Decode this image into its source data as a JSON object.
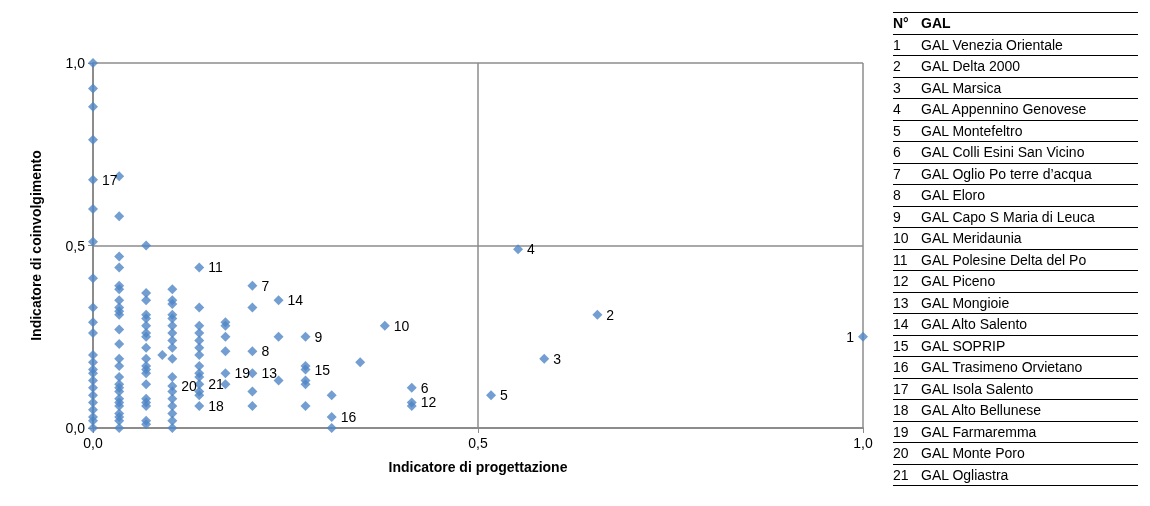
{
  "chart_data": [
    {
      "type": "scatter",
      "xlabel": "Indicatore di progettazione",
      "ylabel": "Indicatore di coinvolgimento",
      "color": "#4f86c6",
      "marker": "diamond",
      "grid": true,
      "xlim": [
        0,
        1
      ],
      "ylim": [
        0,
        1
      ],
      "xticks": [
        {
          "value": 0,
          "label": "0,0"
        },
        {
          "value": 0.5,
          "label": "0,5"
        },
        {
          "value": 1,
          "label": "1,0"
        }
      ],
      "yticks": [
        {
          "value": 0,
          "label": "0,0"
        },
        {
          "value": 0.5,
          "label": "0,5"
        },
        {
          "value": 1,
          "label": "1,0"
        }
      ],
      "x": [
        0,
        0,
        0,
        0,
        0,
        0,
        0,
        0,
        0,
        0,
        0,
        0,
        0,
        0,
        0,
        0,
        0,
        0,
        0,
        0,
        0,
        0,
        0,
        0.034,
        0.034,
        0.034,
        0.034,
        0.034,
        0.034,
        0.034,
        0.034,
        0.034,
        0.034,
        0.034,
        0.034,
        0.034,
        0.034,
        0.034,
        0.034,
        0.034,
        0.034,
        0.034,
        0.034,
        0.034,
        0.034,
        0.034,
        0.034,
        0.034,
        0.069,
        0.069,
        0.069,
        0.069,
        0.069,
        0.069,
        0.069,
        0.069,
        0.069,
        0.069,
        0.069,
        0.069,
        0.069,
        0.069,
        0.069,
        0.069,
        0.069,
        0.069,
        0.069,
        0.09,
        0.103,
        0.103,
        0.103,
        0.103,
        0.103,
        0.103,
        0.103,
        0.103,
        0.103,
        0.103,
        0.103,
        0.103,
        0.103,
        0.103,
        0.103,
        0.103,
        0.103,
        0.103,
        0.138,
        0.138,
        0.138,
        0.138,
        0.138,
        0.138,
        0.138,
        0.138,
        0.138,
        0.138,
        0.138,
        0.138,
        0.138,
        0.138,
        0.172,
        0.172,
        0.172,
        0.172,
        0.172,
        0.172,
        0.207,
        0.207,
        0.207,
        0.207,
        0.207,
        0.207,
        0.241,
        0.241,
        0.241,
        0.276,
        0.276,
        0.276,
        0.276,
        0.276,
        0.276,
        0.31,
        0.31,
        0.31,
        0.347,
        0.379,
        0.414,
        0.414,
        0.414,
        0.517,
        0.552,
        0.586,
        0.655,
        1.0
      ],
      "values": [
        1.0,
        0.93,
        0.88,
        0.79,
        0.68,
        0.6,
        0.51,
        0.41,
        0.33,
        0.29,
        0.26,
        0.2,
        0.18,
        0.16,
        0.15,
        0.13,
        0.11,
        0.09,
        0.07,
        0.05,
        0.03,
        0.02,
        0.0,
        0.69,
        0.58,
        0.47,
        0.44,
        0.39,
        0.38,
        0.35,
        0.33,
        0.32,
        0.31,
        0.27,
        0.23,
        0.19,
        0.17,
        0.14,
        0.12,
        0.11,
        0.1,
        0.08,
        0.07,
        0.06,
        0.04,
        0.03,
        0.02,
        0.0,
        0.5,
        0.37,
        0.35,
        0.31,
        0.3,
        0.28,
        0.26,
        0.25,
        0.22,
        0.19,
        0.17,
        0.16,
        0.15,
        0.12,
        0.08,
        0.07,
        0.06,
        0.02,
        0.01,
        0.2,
        0.38,
        0.35,
        0.34,
        0.31,
        0.3,
        0.28,
        0.26,
        0.24,
        0.22,
        0.19,
        0.14,
        0.115,
        0.1,
        0.08,
        0.06,
        0.04,
        0.02,
        0.0,
        0.44,
        0.33,
        0.28,
        0.26,
        0.24,
        0.22,
        0.2,
        0.17,
        0.15,
        0.14,
        0.12,
        0.1,
        0.09,
        0.06,
        0.29,
        0.28,
        0.25,
        0.21,
        0.15,
        0.12,
        0.39,
        0.33,
        0.21,
        0.15,
        0.1,
        0.06,
        0.35,
        0.25,
        0.13,
        0.25,
        0.17,
        0.16,
        0.13,
        0.12,
        0.06,
        0.09,
        0.03,
        0.0,
        0.18,
        0.28,
        0.11,
        0.07,
        0.06,
        0.09,
        0.49,
        0.19,
        0.31,
        0.25
      ],
      "annotations": [
        {
          "text": "17",
          "x": 0,
          "y": 0.68
        },
        {
          "text": "20",
          "x": 0.103,
          "y": 0.115
        },
        {
          "text": "11",
          "x": 0.138,
          "y": 0.44
        },
        {
          "text": "21",
          "x": 0.138,
          "y": 0.12
        },
        {
          "text": "18",
          "x": 0.138,
          "y": 0.06
        },
        {
          "text": "19",
          "x": 0.172,
          "y": 0.15
        },
        {
          "text": "7",
          "x": 0.207,
          "y": 0.39
        },
        {
          "text": "8",
          "x": 0.207,
          "y": 0.21
        },
        {
          "text": "13",
          "x": 0.207,
          "y": 0.15
        },
        {
          "text": "14",
          "x": 0.241,
          "y": 0.35
        },
        {
          "text": "9",
          "x": 0.276,
          "y": 0.25
        },
        {
          "text": "15",
          "x": 0.276,
          "y": 0.16
        },
        {
          "text": "16",
          "x": 0.31,
          "y": 0.03
        },
        {
          "text": "10",
          "x": 0.379,
          "y": 0.28
        },
        {
          "text": "6",
          "x": 0.414,
          "y": 0.11
        },
        {
          "text": "12",
          "x": 0.414,
          "y": 0.07
        },
        {
          "text": "5",
          "x": 0.517,
          "y": 0.09
        },
        {
          "text": "4",
          "x": 0.552,
          "y": 0.49
        },
        {
          "text": "3",
          "x": 0.586,
          "y": 0.19
        },
        {
          "text": "2",
          "x": 0.655,
          "y": 0.31
        },
        {
          "text": "1",
          "x": 1.0,
          "y": 0.25
        }
      ]
    },
    {
      "type": "other",
      "annotations": [
        "N°\tGAL",
        "1\tGAL Venezia Orientale",
        "2\tGAL Delta 2000",
        "3\tGAL Marsica",
        "4\tGAL Appennino Genovese",
        "5\tGAL Montefeltro",
        "6\tGAL Colli Esini San Vicino",
        "7\tGAL Oglio Po terre d’acqua",
        "8\tGAL Eloro",
        "9\tGAL Capo S Maria di Leuca",
        "10\tGAL Meridaunia",
        "11\tGAL Polesine Delta del Po",
        "12\tGAL Piceno",
        "13\tGAL Mongioie",
        "14\tGAL Alto Salento",
        "15\tGAL SOPRIP",
        "16\tGAL Trasimeno Orvietano",
        "17\tGAL Isola Salento",
        "18\tGAL Alto Bellunese",
        "19\tGAL Farmaremma",
        "20\tGAL Monte Poro",
        "21\tGAL Ogliastra"
      ]
    }
  ]
}
